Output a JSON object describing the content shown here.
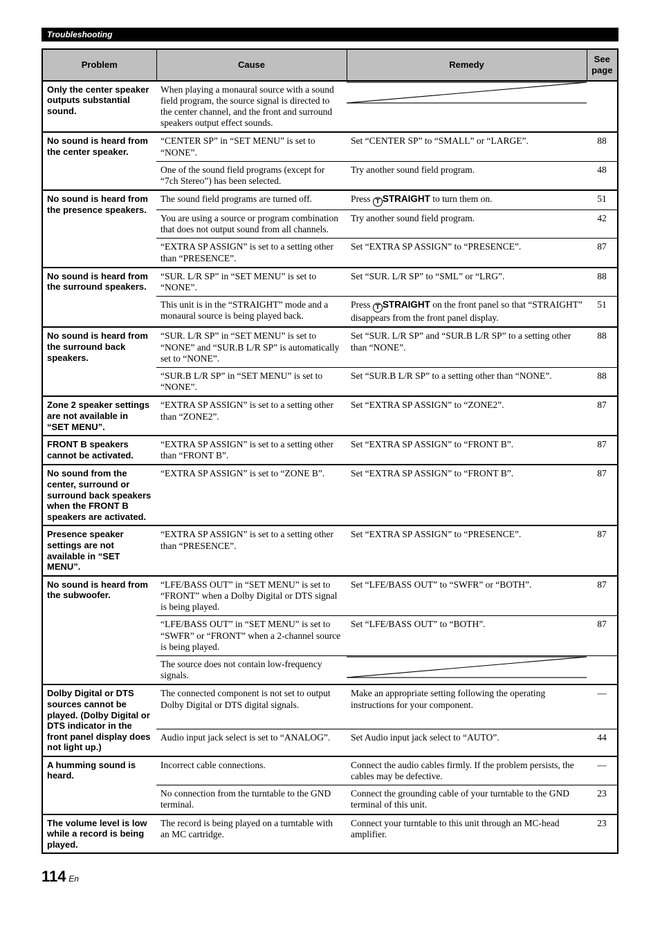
{
  "section_tag": "Troubleshooting",
  "head": {
    "problem": "Problem",
    "cause": "Cause",
    "remedy": "Remedy",
    "see_page": "See page"
  },
  "rows": [
    {
      "problem": "Only the center speaker outputs substantial sound.",
      "sub": [
        {
          "cause": "When playing a monaural source with a sound field program, the source signal is directed to the center channel, and the front and surround speakers output effect sounds.",
          "remedy_slash": true,
          "page": ""
        }
      ]
    },
    {
      "problem": "No sound is heard from the center speaker.",
      "sub": [
        {
          "cause": "“CENTER SP” in “SET MENU” is set to “NONE”.",
          "remedy": "Set “CENTER SP” to “SMALL” or “LARGE”.",
          "page": "88"
        },
        {
          "cause": "One of the sound field programs (except for “7ch Stereo”) has been selected.",
          "remedy": "Try another sound field program.",
          "page": "48"
        }
      ]
    },
    {
      "problem": "No sound is heard from the presence speakers.",
      "sub": [
        {
          "cause": "The sound field programs are turned off.",
          "remedy_html": "Press <span class=\"circle-t\">T</span><span class=\"boldtxt\">STRAIGHT</span> to turn them on.",
          "page": "51"
        },
        {
          "cause": "You are using a source or program combination that does not output sound from all channels.",
          "remedy": "Try another sound field program.",
          "page": "42"
        },
        {
          "cause": "“EXTRA SP ASSIGN” is set to a setting other than “PRESENCE”.",
          "remedy": "Set “EXTRA SP ASSIGN” to “PRESENCE”.",
          "page": "87"
        }
      ]
    },
    {
      "problem": "No sound is heard from the surround speakers.",
      "sub": [
        {
          "cause": "“SUR. L/R SP” in “SET MENU” is set to “NONE”.",
          "remedy": "Set “SUR. L/R SP” to “SML” or “LRG”.",
          "page": "88"
        },
        {
          "cause": "This unit is in the “STRAIGHT” mode and a monaural source is being played back.",
          "remedy_html": "Press <span class=\"circle-t\">T</span><span class=\"boldtxt\">STRAIGHT</span> on the front panel so that “STRAIGHT” disappears from the front panel display.",
          "page": "51"
        }
      ]
    },
    {
      "problem": "No sound is heard from the surround back speakers.",
      "sub": [
        {
          "cause": "“SUR. L/R SP” in “SET MENU” is set to “NONE” and “SUR.B L/R SP” is automatically set to “NONE”.",
          "remedy": "Set “SUR. L/R SP” and “SUR.B L/R SP” to a setting other than “NONE”.",
          "page": "88"
        },
        {
          "cause": "“SUR.B L/R SP” in “SET MENU” is set to “NONE”.",
          "remedy": "Set “SUR.B L/R SP” to a setting other than “NONE”.",
          "page": "88"
        }
      ]
    },
    {
      "problem": "Zone 2 speaker settings are not available in “SET MENU”.",
      "sub": [
        {
          "cause": "“EXTRA SP ASSIGN” is set to a setting other than “ZONE2”.",
          "remedy": "Set “EXTRA SP ASSIGN” to “ZONE2”.",
          "page": "87"
        }
      ]
    },
    {
      "problem": "FRONT B speakers cannot be activated.",
      "sub": [
        {
          "cause": "“EXTRA SP ASSIGN” is set to a setting other than “FRONT B”.",
          "remedy": "Set “EXTRA SP ASSIGN” to “FRONT B”.",
          "page": "87"
        }
      ]
    },
    {
      "problem": "No sound from the center, surround or surround back speakers when the FRONT B speakers are activated.",
      "sub": [
        {
          "cause": "“EXTRA SP ASSIGN” is set to “ZONE B”.",
          "remedy": "Set “EXTRA SP ASSIGN” to “FRONT B”.",
          "page": "87"
        }
      ]
    },
    {
      "problem": "Presence speaker settings are not available in “SET MENU”.",
      "sub": [
        {
          "cause": "“EXTRA SP ASSIGN” is set to a setting other than “PRESENCE”.",
          "remedy": "Set “EXTRA SP ASSIGN” to “PRESENCE”.",
          "page": "87"
        }
      ]
    },
    {
      "problem": "No sound is heard from the subwoofer.",
      "sub": [
        {
          "cause": "“LFE/BASS OUT” in “SET MENU” is set to “FRONT” when a Dolby Digital or DTS signal is being played.",
          "remedy": "Set “LFE/BASS OUT” to “SWFR” or “BOTH”.",
          "page": "87"
        },
        {
          "cause": "“LFE/BASS OUT” in “SET MENU” is set to “SWFR” or “FRONT” when a 2-channel source is being played.",
          "remedy": "Set “LFE/BASS OUT” to “BOTH”.",
          "page": "87"
        },
        {
          "cause": "The source does not contain low-frequency signals.",
          "remedy_slash": true,
          "page": ""
        }
      ]
    },
    {
      "problem": "Dolby Digital or DTS sources cannot be played. (Dolby Digital or DTS indicator in the front panel display does not light up.)",
      "sub": [
        {
          "cause": "The connected component is not set to output Dolby Digital or DTS digital signals.",
          "remedy": "Make an appropriate setting following the operating instructions for your component.",
          "page": "—"
        },
        {
          "cause": "Audio input jack select is set to “ANALOG”.",
          "remedy": "Set Audio input jack select to “AUTO”.",
          "page": "44"
        }
      ]
    },
    {
      "problem": "A humming sound is heard.",
      "sub": [
        {
          "cause": "Incorrect cable connections.",
          "remedy": "Connect the audio cables firmly. If the problem persists, the cables may be defective.",
          "page": "—"
        },
        {
          "cause": "No connection from the turntable to the GND terminal.",
          "remedy": "Connect the grounding cable of your turntable to the GND terminal of this unit.",
          "page": "23"
        }
      ]
    },
    {
      "problem": "The volume level is low while a record is being played.",
      "sub": [
        {
          "cause": "The record is being played on a turntable with an MC cartridge.",
          "remedy": "Connect your turntable to this unit through an MC-head amplifier.",
          "page": "23"
        }
      ]
    }
  ],
  "footer": {
    "num": "114",
    "en": "En"
  },
  "colors": {
    "header_bg": "#bfbfbf"
  }
}
